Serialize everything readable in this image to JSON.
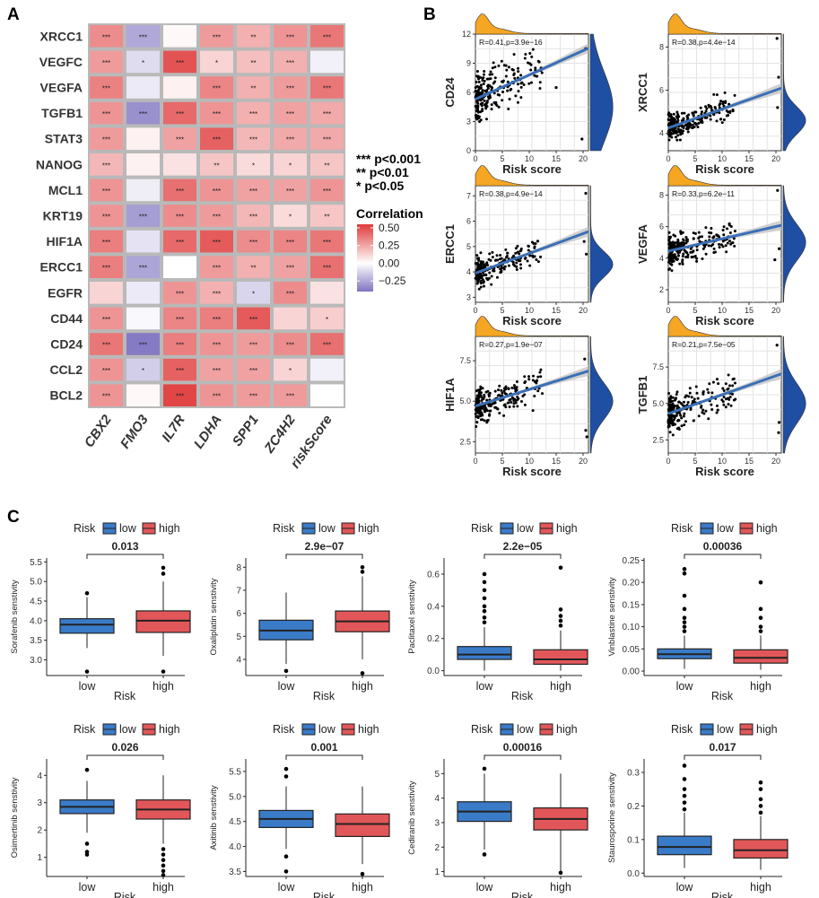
{
  "colors": {
    "low": "#3a7bc8",
    "high": "#e15759",
    "density_top": "#f5a623",
    "density_right": "#1f4fa3",
    "fit_line": "#3a6fb7"
  },
  "panels": {
    "a": "A",
    "b": "B",
    "c": "C"
  },
  "chart_data": [
    {
      "type": "heatmap",
      "panel": "A",
      "rows": [
        "XRCC1",
        "VEGFC",
        "VEGFA",
        "TGFB1",
        "STAT3",
        "NANOG",
        "MCL1",
        "KRT19",
        "HIF1A",
        "ERCC1",
        "EGFR",
        "CD44",
        "CD24",
        "CCL2",
        "BCL2"
      ],
      "columns": [
        "CBX2",
        "FMO3",
        "IL7R",
        "LDHA",
        "SPP1",
        "ZC4H2",
        "riskScore"
      ],
      "values": [
        [
          0.32,
          -0.25,
          0.02,
          0.28,
          0.22,
          0.3,
          0.38
        ],
        [
          0.28,
          -0.1,
          0.48,
          0.12,
          0.18,
          0.22,
          -0.04
        ],
        [
          0.35,
          -0.06,
          0.04,
          0.34,
          0.22,
          0.28,
          0.38
        ],
        [
          0.3,
          -0.32,
          0.42,
          0.3,
          0.22,
          0.26,
          0.24
        ],
        [
          0.28,
          0.04,
          0.26,
          0.44,
          0.2,
          0.24,
          0.24
        ],
        [
          0.2,
          0.04,
          0.08,
          0.16,
          0.1,
          0.12,
          0.16
        ],
        [
          0.3,
          -0.05,
          0.4,
          0.3,
          0.26,
          0.26,
          0.3
        ],
        [
          0.3,
          -0.28,
          0.32,
          0.28,
          0.2,
          0.1,
          0.16
        ],
        [
          0.36,
          -0.08,
          0.42,
          0.46,
          0.32,
          0.34,
          0.38
        ],
        [
          0.36,
          -0.26,
          0.0,
          0.28,
          0.22,
          0.26,
          0.4
        ],
        [
          0.12,
          -0.06,
          0.3,
          0.22,
          -0.12,
          0.32,
          0.08
        ],
        [
          0.3,
          -0.02,
          0.34,
          0.36,
          0.46,
          0.12,
          0.14
        ],
        [
          0.38,
          -0.38,
          0.36,
          0.3,
          0.28,
          0.32,
          0.4
        ],
        [
          0.3,
          -0.14,
          0.44,
          0.26,
          0.26,
          0.12,
          -0.04
        ],
        [
          0.3,
          0.02,
          0.52,
          0.3,
          0.28,
          0.28,
          0.0
        ]
      ],
      "stars": [
        [
          "***",
          "***",
          "",
          "***",
          "**",
          "***",
          "***"
        ],
        [
          "***",
          "*",
          "***",
          "*",
          "**",
          "***",
          ""
        ],
        [
          "***",
          "",
          "",
          "***",
          "**",
          "***",
          "***"
        ],
        [
          "***",
          "***",
          "***",
          "***",
          "***",
          "***",
          "***"
        ],
        [
          "***",
          "",
          "***",
          "***",
          "***",
          "***",
          "***"
        ],
        [
          "***",
          "",
          "",
          "**",
          "*",
          "*",
          "**"
        ],
        [
          "***",
          "",
          "***",
          "***",
          "***",
          "***",
          "***"
        ],
        [
          "***",
          "***",
          "***",
          "***",
          "***",
          "*",
          "**"
        ],
        [
          "***",
          "",
          "***",
          "***",
          "***",
          "***",
          "***"
        ],
        [
          "***",
          "***",
          "",
          "***",
          "**",
          "***",
          "***"
        ],
        [
          "",
          "",
          "***",
          "***",
          "*",
          "***",
          ""
        ],
        [
          "***",
          "",
          "***",
          "***",
          "***",
          "",
          "*"
        ],
        [
          "***",
          "***",
          "***",
          "***",
          "***",
          "***",
          "***"
        ],
        [
          "***",
          "*",
          "***",
          "***",
          "***",
          "*",
          ""
        ],
        [
          "***",
          "",
          "***",
          "***",
          "***",
          "***",
          ""
        ]
      ],
      "significance_legend": [
        "***  p<0.001",
        "**  p<0.01",
        "*  p<0.05"
      ],
      "colorbar": {
        "title": "Correlation",
        "ticks": [
          "0.50",
          "0.25",
          "0.00",
          "−0.25"
        ],
        "range": [
          -0.4,
          0.55
        ],
        "low_color": "#7f74c2",
        "mid_color": "#ffffff",
        "high_color": "#e03a3a"
      }
    },
    {
      "type": "scatter",
      "panel": "B",
      "xlabel": "Risk score",
      "x_ticks": [
        "0",
        "5",
        "10",
        "15",
        "20"
      ],
      "xlim": [
        0,
        21
      ],
      "plots": [
        {
          "ylabel": "CD24",
          "annotation": "R=0.41,p=3.9e−16",
          "y_ticks": [
            "0",
            "3",
            "6",
            "9",
            "12"
          ],
          "ylim": [
            0,
            12
          ],
          "fit": [
            5.3,
            0.25
          ],
          "y_center": 4.5,
          "y_spread": 3.2,
          "outliers": [
            [
              20.5,
              10.5
            ],
            [
              15,
              6.5
            ],
            [
              19.8,
              1.2
            ]
          ],
          "seed": 11
        },
        {
          "ylabel": "XRCC1",
          "annotation": "R=0.38,p=4.4e−14",
          "y_ticks": [
            "4",
            "6",
            "8"
          ],
          "ylim": [
            3.2,
            8.6
          ],
          "fit": [
            4.25,
            0.088
          ],
          "y_center": 4.6,
          "y_spread": 0.8,
          "outliers": [
            [
              20.2,
              8.4
            ],
            [
              20.5,
              6.6
            ],
            [
              20.3,
              5.2
            ]
          ],
          "seed": 23
        },
        {
          "ylabel": "ERCC1",
          "annotation": "R=0.38,p=4.9e−14",
          "y_ticks": [
            "3",
            "4",
            "5",
            "6",
            "7"
          ],
          "ylim": [
            2.8,
            7.4
          ],
          "fit": [
            3.95,
            0.078
          ],
          "y_center": 4.3,
          "y_spread": 0.7,
          "outliers": [
            [
              20.5,
              7.1
            ],
            [
              20.2,
              5.2
            ],
            [
              20.6,
              4.7
            ]
          ],
          "seed": 37
        },
        {
          "ylabel": "VEGFA",
          "annotation": "R=0.33,p=6.2e−11",
          "y_ticks": [
            "2",
            "4",
            "6",
            "8"
          ],
          "ylim": [
            1.2,
            8.6
          ],
          "fit": [
            4.45,
            0.078
          ],
          "y_center": 5.0,
          "y_spread": 1.3,
          "outliers": [
            [
              20.3,
              8.3
            ],
            [
              20.6,
              4.6
            ],
            [
              19.8,
              3.9
            ]
          ],
          "seed": 41
        },
        {
          "ylabel": "HIF1A",
          "annotation": "R=0.27,p=1.9e−07",
          "y_ticks": [
            "2.5",
            "5.0",
            "7.5"
          ],
          "ylim": [
            1.8,
            9.0
          ],
          "fit": [
            4.7,
            0.103
          ],
          "y_center": 5.0,
          "y_spread": 1.3,
          "outliers": [
            [
              20.3,
              7.6
            ],
            [
              20.5,
              3.2
            ],
            [
              20.7,
              2.8
            ]
          ],
          "seed": 53
        },
        {
          "ylabel": "TGFB1",
          "annotation": "R=0.21,p=7.5e−05",
          "y_ticks": [
            "2.5",
            "5.0",
            "7.5"
          ],
          "ylim": [
            1.6,
            9.6
          ],
          "fit": [
            4.3,
            0.13
          ],
          "y_center": 5.0,
          "y_spread": 1.5,
          "outliers": [
            [
              20.2,
              9.0
            ],
            [
              20.6,
              3.7
            ],
            [
              20.5,
              3.0
            ]
          ],
          "seed": 67
        }
      ]
    },
    {
      "type": "boxplot",
      "panel": "C",
      "legend_title": "Risk",
      "groups": [
        "low",
        "high"
      ],
      "xlabel": "Risk",
      "plots": [
        {
          "ylabel": "Sorafenib senstivity",
          "pvalue": "0.013",
          "ylim": [
            2.6,
            5.6
          ],
          "y_ticks": [
            "3.0",
            "3.5",
            "4.0",
            "4.5",
            "5.0",
            "5.5"
          ],
          "y_tick_values": [
            3.0,
            3.5,
            4.0,
            4.5,
            5.0,
            5.5
          ],
          "low": {
            "min": 3.3,
            "q1": 3.68,
            "median": 3.9,
            "q3": 4.05,
            "max": 4.6,
            "outliers": [
              4.7,
              2.7
            ]
          },
          "high": {
            "min": 3.1,
            "q1": 3.7,
            "median": 4.0,
            "q3": 4.25,
            "max": 5.0,
            "outliers": [
              5.2,
              5.35,
              2.7
            ]
          }
        },
        {
          "ylabel": "Oxaliplatin senstivity",
          "pvalue": "2.9e−07",
          "ylim": [
            3.3,
            8.4
          ],
          "y_ticks": [
            "4",
            "5",
            "6",
            "7",
            "8"
          ],
          "y_tick_values": [
            4,
            5,
            6,
            7,
            8
          ],
          "low": {
            "min": 3.8,
            "q1": 4.85,
            "median": 5.25,
            "q3": 5.7,
            "max": 6.9,
            "outliers": [
              3.5
            ]
          },
          "high": {
            "min": 4.0,
            "q1": 5.2,
            "median": 5.65,
            "q3": 6.1,
            "max": 7.6,
            "outliers": [
              7.8,
              8.0,
              3.4
            ]
          }
        },
        {
          "ylabel": "Paclitaxel senstivity",
          "pvalue": "2.2e−05",
          "ylim": [
            -0.03,
            0.7
          ],
          "y_ticks": [
            "0.0",
            "0.2",
            "0.4",
            "0.6"
          ],
          "y_tick_values": [
            0,
            0.2,
            0.4,
            0.6
          ],
          "low": {
            "min": 0.0,
            "q1": 0.07,
            "median": 0.1,
            "q3": 0.15,
            "max": 0.27,
            "outliers": [
              0.3,
              0.33,
              0.37,
              0.4,
              0.45,
              0.5,
              0.55,
              0.6
            ]
          },
          "high": {
            "min": 0.0,
            "q1": 0.04,
            "median": 0.07,
            "q3": 0.13,
            "max": 0.25,
            "outliers": [
              0.28,
              0.31,
              0.34,
              0.38,
              0.64
            ]
          }
        },
        {
          "ylabel": "Vinblastine senstivity",
          "pvalue": "0.00036",
          "ylim": [
            -0.01,
            0.255
          ],
          "y_ticks": [
            "0.00",
            "0.05",
            "0.10",
            "0.15",
            "0.20",
            "0.25"
          ],
          "y_tick_values": [
            0,
            0.05,
            0.1,
            0.15,
            0.2,
            0.25
          ],
          "low": {
            "min": 0.005,
            "q1": 0.028,
            "median": 0.038,
            "q3": 0.05,
            "max": 0.08,
            "outliers": [
              0.09,
              0.1,
              0.11,
              0.12,
              0.14,
              0.17,
              0.22,
              0.23
            ]
          },
          "high": {
            "min": 0.003,
            "q1": 0.018,
            "median": 0.03,
            "q3": 0.048,
            "max": 0.08,
            "outliers": [
              0.09,
              0.1,
              0.12,
              0.14,
              0.2
            ]
          }
        },
        {
          "ylabel": "Osimertinib senstivity",
          "pvalue": "0.026",
          "ylim": [
            0.3,
            4.6
          ],
          "y_ticks": [
            "1",
            "2",
            "3",
            "4"
          ],
          "y_tick_values": [
            1,
            2,
            3,
            4
          ],
          "low": {
            "min": 1.9,
            "q1": 2.6,
            "median": 2.85,
            "q3": 3.1,
            "max": 3.8,
            "outliers": [
              4.2,
              1.5,
              1.2,
              1.1
            ]
          },
          "high": {
            "min": 1.5,
            "q1": 2.4,
            "median": 2.75,
            "q3": 3.1,
            "max": 4.0,
            "outliers": [
              1.3,
              1.1,
              0.9,
              0.7,
              0.5,
              0.35
            ]
          }
        },
        {
          "ylabel": "Axitinib senstivity",
          "pvalue": "0.001",
          "ylim": [
            3.4,
            5.75
          ],
          "y_ticks": [
            "3.5",
            "4.0",
            "4.5",
            "5.0",
            "5.5"
          ],
          "y_tick_values": [
            3.5,
            4.0,
            4.5,
            5.0,
            5.5
          ],
          "low": {
            "min": 3.95,
            "q1": 4.38,
            "median": 4.55,
            "q3": 4.72,
            "max": 5.2,
            "outliers": [
              5.4,
              5.55,
              3.8,
              3.5
            ]
          },
          "high": {
            "min": 3.65,
            "q1": 4.2,
            "median": 4.45,
            "q3": 4.65,
            "max": 5.2,
            "outliers": [
              3.45
            ]
          }
        },
        {
          "ylabel": "Cediranib senstivity",
          "pvalue": "0.00016",
          "ylim": [
            0.8,
            5.6
          ],
          "y_ticks": [
            "1",
            "2",
            "3",
            "4",
            "5"
          ],
          "y_tick_values": [
            1,
            2,
            3,
            4,
            5
          ],
          "low": {
            "min": 1.9,
            "q1": 3.05,
            "median": 3.45,
            "q3": 3.85,
            "max": 5.0,
            "outliers": [
              5.2,
              1.7
            ]
          },
          "high": {
            "min": 1.0,
            "q1": 2.7,
            "median": 3.15,
            "q3": 3.6,
            "max": 5.0,
            "outliers": [
              0.95
            ]
          }
        },
        {
          "ylabel": "Staurosporine senstivity",
          "pvalue": "0.017",
          "ylim": [
            -0.01,
            0.34
          ],
          "y_ticks": [
            "0.0",
            "0.1",
            "0.2",
            "0.3"
          ],
          "y_tick_values": [
            0,
            0.1,
            0.2,
            0.3
          ],
          "low": {
            "min": 0.015,
            "q1": 0.055,
            "median": 0.078,
            "q3": 0.11,
            "max": 0.18,
            "outliers": [
              0.19,
              0.21,
              0.23,
              0.25,
              0.28,
              0.32
            ]
          },
          "high": {
            "min": 0.01,
            "q1": 0.045,
            "median": 0.068,
            "q3": 0.1,
            "max": 0.17,
            "outliers": [
              0.18,
              0.2,
              0.22,
              0.25,
              0.27
            ]
          }
        }
      ]
    }
  ]
}
